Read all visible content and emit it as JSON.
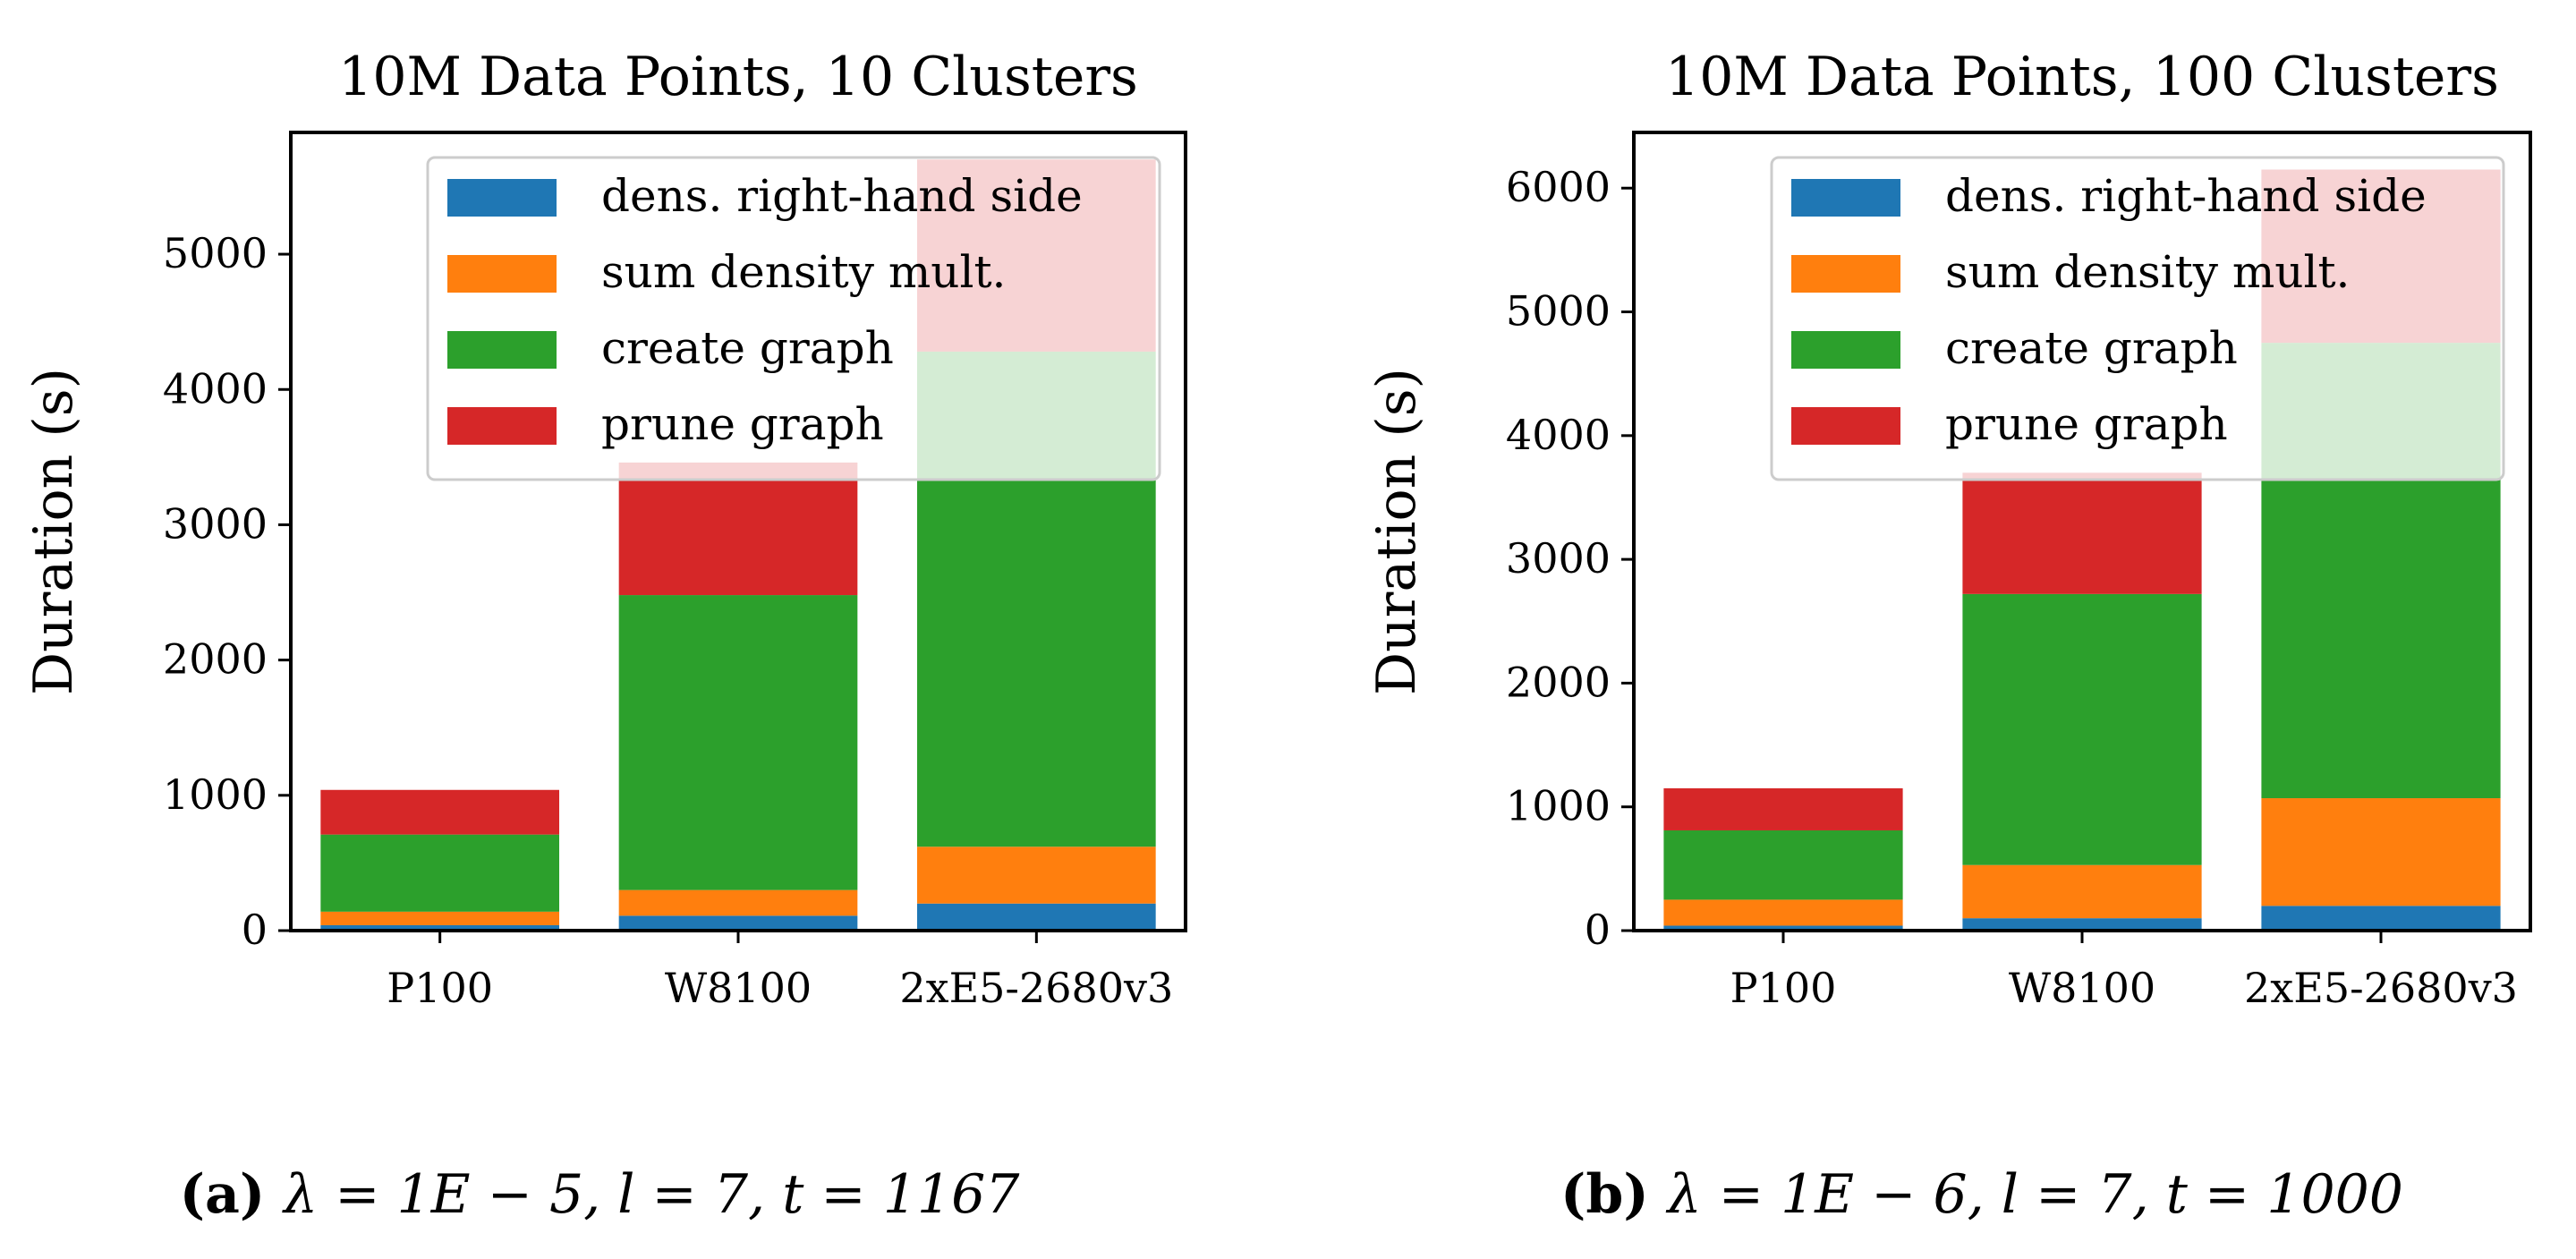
{
  "chart_data": [
    {
      "type": "bar",
      "stacked": true,
      "title": "10M Data Points, 10 Clusters",
      "xlabel": "",
      "ylabel": "Duration (s)",
      "ylim": [
        0,
        5900
      ],
      "yticks": [
        0,
        1000,
        2000,
        3000,
        4000,
        5000
      ],
      "categories": [
        "P100",
        "W8100",
        "2xE5-2680v3"
      ],
      "series": [
        {
          "name": "dens. right-hand side",
          "color": "#1f77b4",
          "values": [
            40,
            110,
            200
          ]
        },
        {
          "name": "sum density mult.",
          "color": "#ff7f0e",
          "values": [
            100,
            190,
            420
          ]
        },
        {
          "name": "create graph",
          "color": "#2ca02c",
          "values": [
            570,
            2180,
            3660
          ]
        },
        {
          "name": "prune graph",
          "color": "#d62728",
          "values": [
            330,
            980,
            1420
          ]
        }
      ],
      "legend_position": "top-right",
      "caption": {
        "label": "(a)",
        "formula": "λ = 1E − 5, l = 7, t = 1167"
      }
    },
    {
      "type": "bar",
      "stacked": true,
      "title": "10M Data Points, 100 Clusters",
      "xlabel": "",
      "ylabel": "Duration (s)",
      "ylim": [
        0,
        6450
      ],
      "yticks": [
        0,
        1000,
        2000,
        3000,
        4000,
        5000,
        6000
      ],
      "categories": [
        "P100",
        "W8100",
        "2xE5-2680v3"
      ],
      "series": [
        {
          "name": "dens. right-hand side",
          "color": "#1f77b4",
          "values": [
            40,
            100,
            200
          ]
        },
        {
          "name": "sum density mult.",
          "color": "#ff7f0e",
          "values": [
            210,
            430,
            870
          ]
        },
        {
          "name": "create graph",
          "color": "#2ca02c",
          "values": [
            560,
            2190,
            3680
          ]
        },
        {
          "name": "prune graph",
          "color": "#d62728",
          "values": [
            340,
            980,
            1400
          ]
        }
      ],
      "legend_position": "top-right",
      "caption": {
        "label": "(b)",
        "formula": "λ = 1E − 6, l = 7, t = 1000"
      }
    }
  ]
}
